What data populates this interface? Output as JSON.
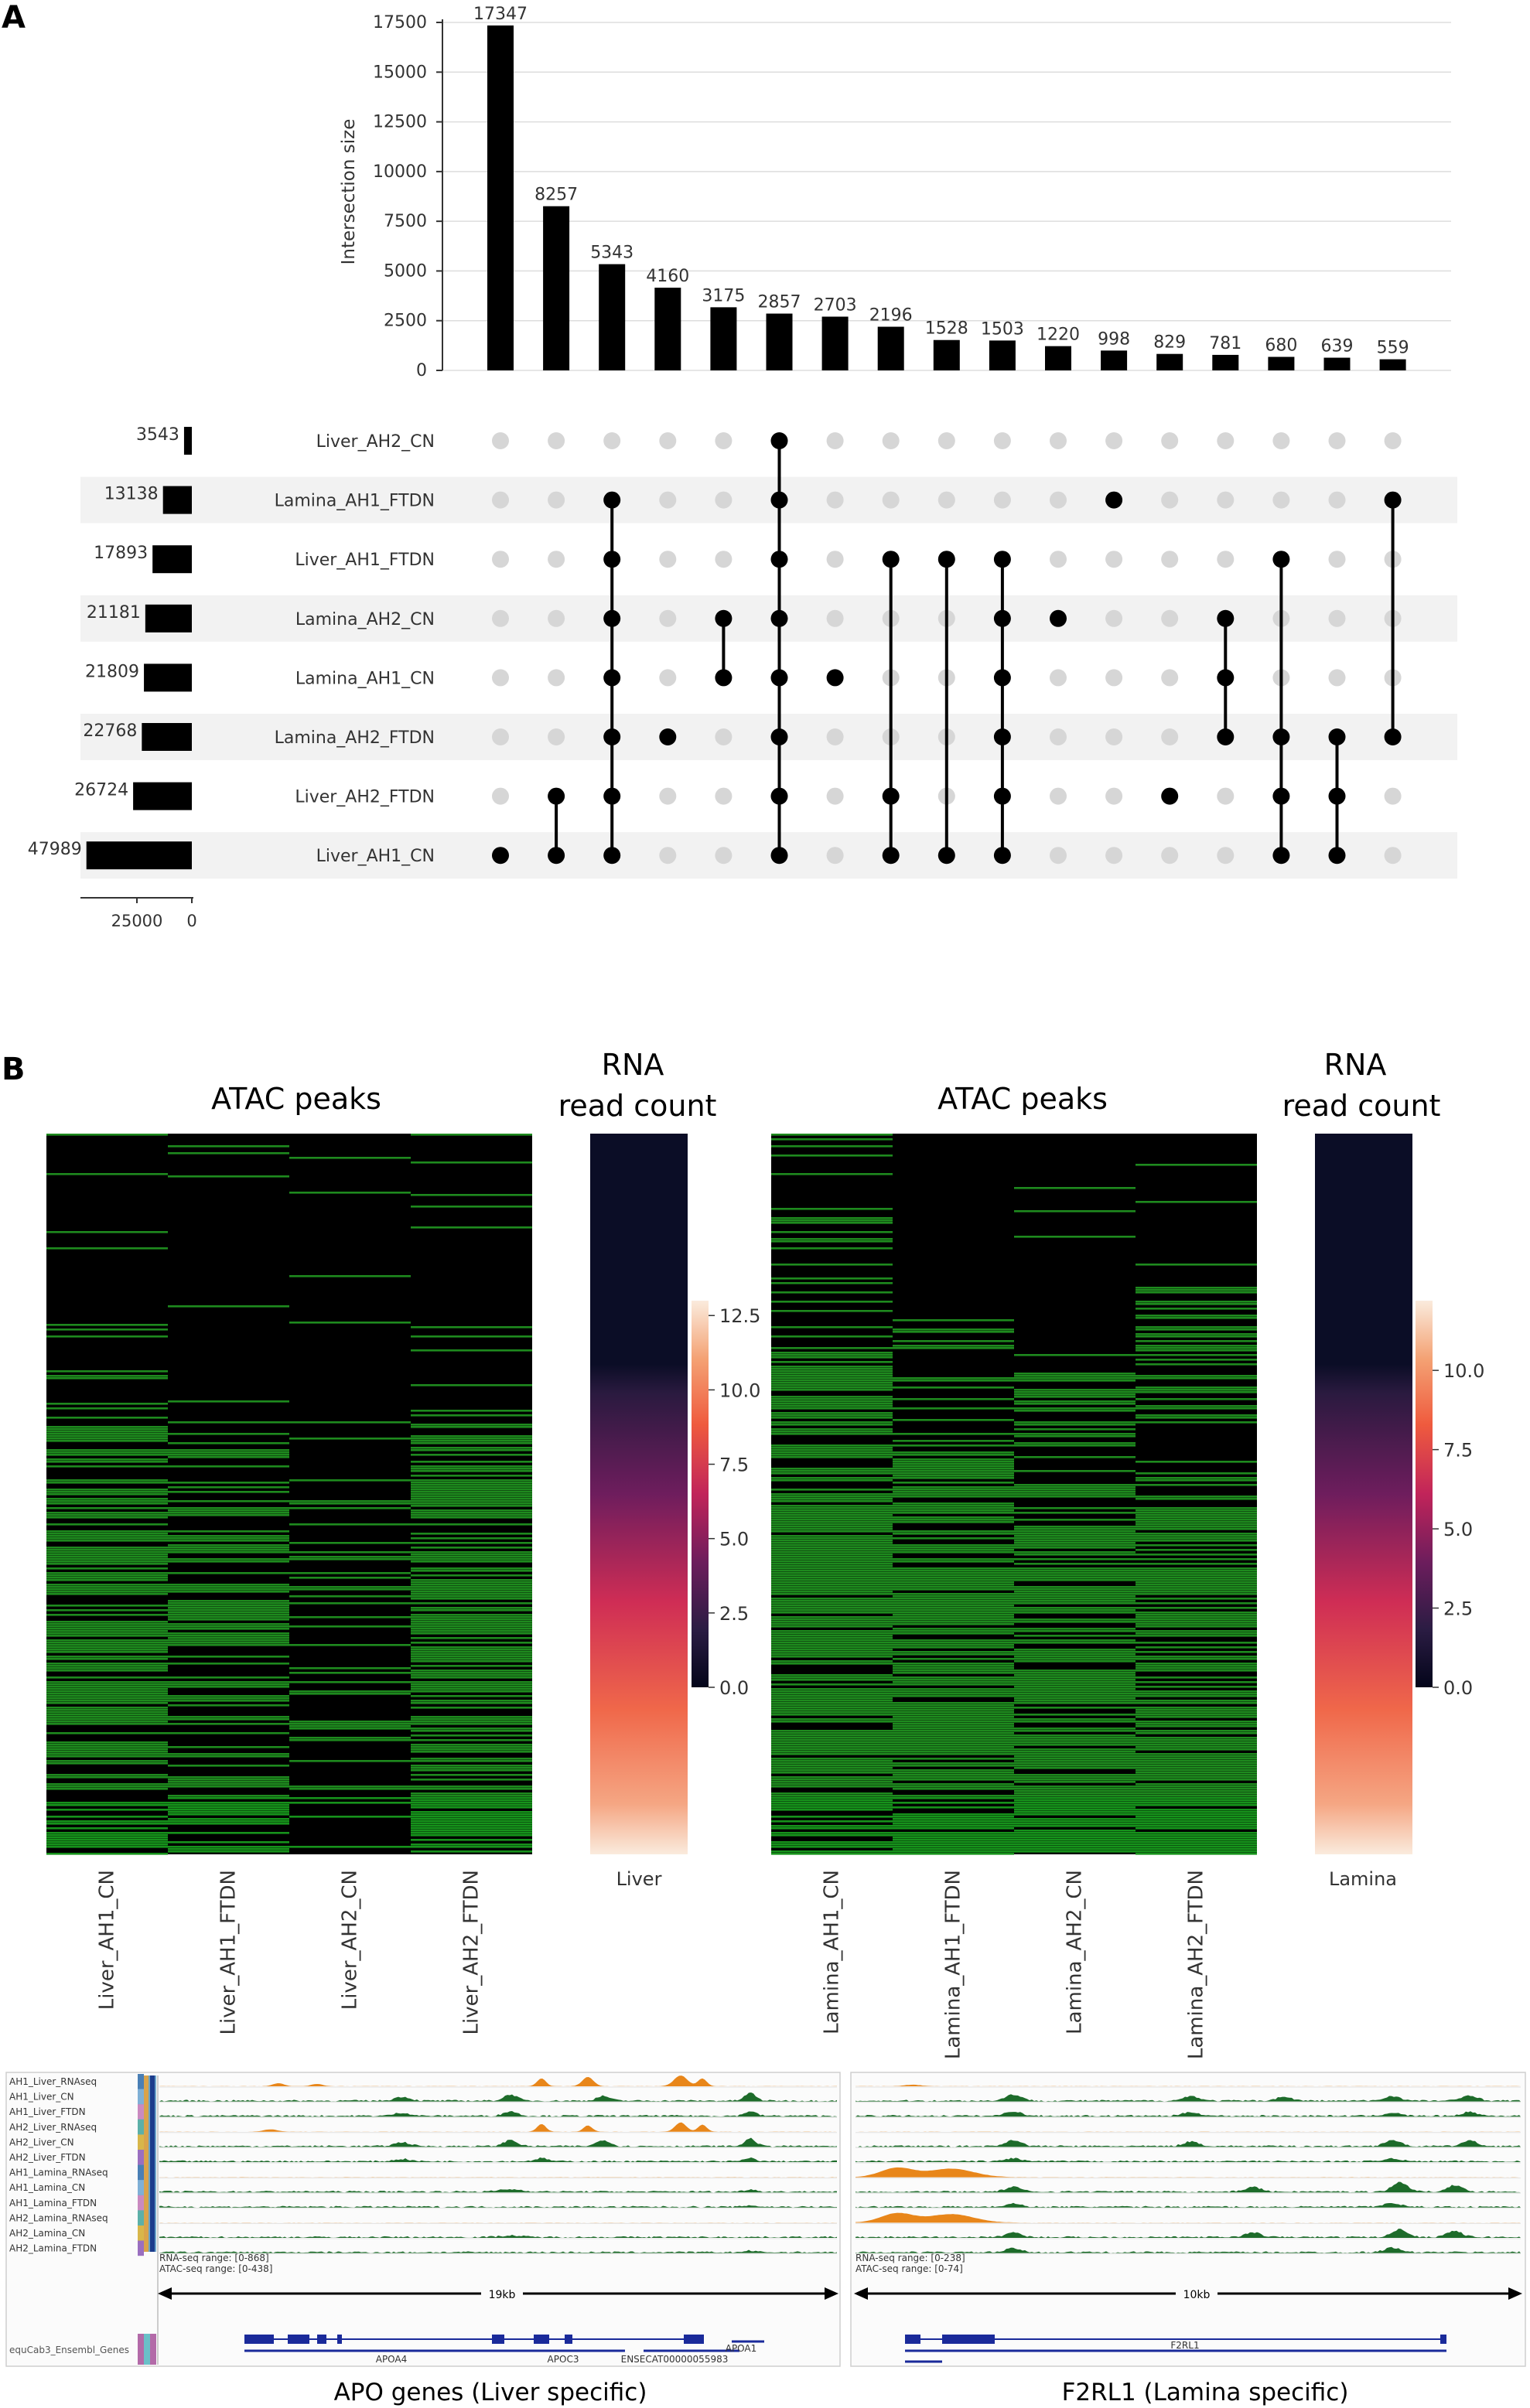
{
  "panel_a": {
    "label": "A",
    "chart_data": {
      "type": "bar",
      "title": "",
      "ylabel": "Intersection size",
      "ylim": [
        0,
        17500
      ],
      "yticks": [
        0,
        2500,
        5000,
        7500,
        10000,
        12500,
        15000,
        17500
      ],
      "values": [
        17347,
        8257,
        5343,
        4160,
        3175,
        2857,
        2703,
        2196,
        1528,
        1503,
        1220,
        998,
        829,
        781,
        680,
        639,
        559
      ],
      "sets": [
        "Liver_AH2_CN",
        "Lamina_AH1_FTDN",
        "Liver_AH1_FTDN",
        "Lamina_AH2_CN",
        "Lamina_AH1_CN",
        "Lamina_AH2_FTDN",
        "Liver_AH2_FTDN",
        "Liver_AH1_CN"
      ],
      "set_sizes": [
        3543,
        13138,
        17893,
        21181,
        21809,
        22768,
        26724,
        47989
      ],
      "set_size_ticks": [
        "25000",
        "0"
      ],
      "set_size_max": 47989,
      "membership": [
        [
          7
        ],
        [
          6,
          7
        ],
        [
          1,
          2,
          3,
          4,
          5,
          6,
          7
        ],
        [
          5
        ],
        [
          3,
          4
        ],
        [
          0,
          1,
          2,
          3,
          4,
          5,
          6,
          7
        ],
        [
          4
        ],
        [
          2,
          6,
          7
        ],
        [
          2,
          7
        ],
        [
          2,
          3,
          4,
          5,
          6,
          7
        ],
        [
          3
        ],
        [
          1
        ],
        [
          6
        ],
        [
          3,
          4,
          5
        ],
        [
          2,
          5,
          6,
          7
        ],
        [
          5,
          6,
          7
        ],
        [
          1,
          5
        ]
      ]
    }
  },
  "panel_b": {
    "label": "B",
    "left": {
      "atac_title": "ATAC peaks",
      "rna_title_line1": "RNA",
      "rna_title_line2": "read count",
      "columns": [
        "Liver_AH1_CN",
        "Liver_AH1_FTDN",
        "Liver_AH2_CN",
        "Liver_AH2_FTDN"
      ],
      "rna_label": "Liver",
      "colorbar_ticks": [
        "12.5",
        "10.0",
        "7.5",
        "5.0",
        "2.5",
        "0.0"
      ],
      "colorbar_max": 13.0
    },
    "right": {
      "atac_title": "ATAC peaks",
      "rna_title_line1": "RNA",
      "rna_title_line2": "read count",
      "columns": [
        "Lamina_AH1_CN",
        "Lamina_AH1_FTDN",
        "Lamina_AH2_CN",
        "Lamina_AH2_FTDN"
      ],
      "rna_label": "Lamina",
      "colorbar_ticks": [
        "10.0",
        "7.5",
        "5.0",
        "2.5",
        "0.0"
      ],
      "colorbar_max": 12.2
    },
    "colors": {
      "peak": "#1f8f1f",
      "background": "#000000",
      "rna_track": "#e8861a",
      "atac_track": "#1d6b2a",
      "gene": "#1a2a9a"
    }
  },
  "browser": {
    "tracks": [
      "AH1_Liver_RNAseq",
      "AH1_Liver_CN",
      "AH1_Liver_FTDN",
      "AH2_Liver_RNAseq",
      "AH2_Liver_CN",
      "AH2_Liver_FTDN",
      "AH1_Lamina_RNAseq",
      "AH1_Lamina_CN",
      "AH1_Lamina_FTDN",
      "AH2_Lamina_RNAseq",
      "AH2_Lamina_CN",
      "AH2_Lamina_FTDN"
    ],
    "left": {
      "rna_range": "RNA-seq range: [0-868]",
      "atac_range": "ATAC-seq range: [0-438]",
      "scale": "19kb",
      "gene_track": "equCab3_Ensembl_Genes",
      "genes": [
        "APOA4",
        "APOC3",
        "ENSECAT00000055983",
        "APOA1"
      ],
      "caption": "APO genes (Liver specific)"
    },
    "right": {
      "rna_range": "RNA-seq range: [0-238]",
      "atac_range": "ATAC-seq range: [0-74]",
      "scale": "10kb",
      "genes": [
        "F2RL1"
      ],
      "caption": "F2RL1 (Lamina specific)"
    }
  }
}
